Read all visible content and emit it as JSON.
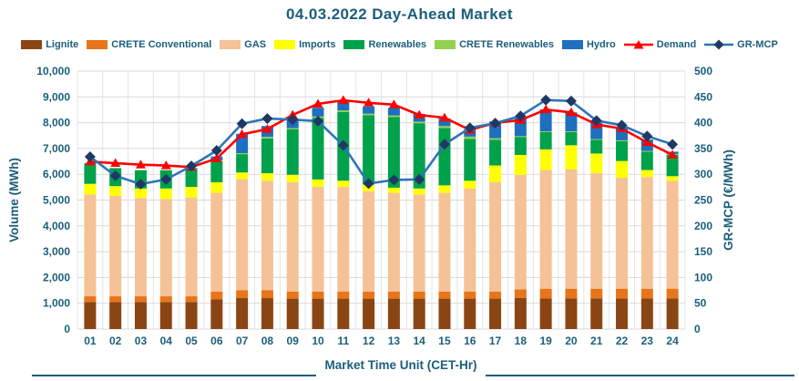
{
  "title": "04.03.2022  Day-Ahead Market",
  "chart_data": {
    "type": "bar",
    "subtype": "stacked-bar-with-lines",
    "title": "04.03.2022  Day-Ahead Market",
    "xlabel": "Market Time Unit (CET-Hr)",
    "ylabel": "Volume (MWh)",
    "y2label": "GR-MCP (€/MWh)",
    "ylim": [
      0,
      10000
    ],
    "ytick_step": 1000,
    "y2lim": [
      0,
      500
    ],
    "y2tick_step": 50,
    "grid": true,
    "legend_position": "top",
    "categories": [
      "01",
      "02",
      "03",
      "04",
      "05",
      "06",
      "07",
      "08",
      "09",
      "10",
      "11",
      "12",
      "13",
      "14",
      "15",
      "16",
      "17",
      "18",
      "19",
      "20",
      "21",
      "22",
      "23",
      "24"
    ],
    "bar_series": [
      {
        "name": "Lignite",
        "color": "#8B4513",
        "values": [
          1050,
          1050,
          1050,
          1050,
          1050,
          1150,
          1200,
          1200,
          1180,
          1180,
          1180,
          1180,
          1180,
          1180,
          1180,
          1180,
          1180,
          1210,
          1190,
          1190,
          1190,
          1190,
          1190,
          1190
        ]
      },
      {
        "name": "CRETE Conventional",
        "color": "#E8751A",
        "values": [
          220,
          220,
          220,
          220,
          220,
          300,
          310,
          310,
          270,
          270,
          270,
          270,
          270,
          270,
          270,
          270,
          270,
          330,
          375,
          375,
          375,
          375,
          375,
          375
        ]
      },
      {
        "name": "GAS",
        "color": "#F4C296",
        "values": [
          3950,
          3890,
          3810,
          3770,
          3830,
          3830,
          4300,
          4240,
          4240,
          4060,
          4060,
          3890,
          3830,
          3770,
          3830,
          4000,
          4240,
          4440,
          4600,
          4620,
          4480,
          4300,
          4330,
          4180
        ]
      },
      {
        "name": "Imports",
        "color": "#FFFF00",
        "values": [
          410,
          380,
          370,
          410,
          410,
          410,
          260,
          290,
          290,
          290,
          240,
          260,
          200,
          230,
          290,
          300,
          650,
          770,
          800,
          940,
          760,
          650,
          270,
          180
        ]
      },
      {
        "name": "Renewables",
        "color": "#00A14B",
        "values": [
          800,
          700,
          710,
          710,
          730,
          810,
          710,
          1350,
          1770,
          2380,
          2670,
          2690,
          2740,
          2530,
          2220,
          1620,
          1000,
          700,
          670,
          510,
          530,
          770,
          710,
          830
        ]
      },
      {
        "name": "CRETE Renewables",
        "color": "#92D050",
        "values": [
          0,
          0,
          0,
          0,
          0,
          40,
          40,
          60,
          40,
          60,
          60,
          60,
          60,
          60,
          80,
          90,
          60,
          30,
          30,
          30,
          30,
          30,
          30,
          30
        ]
      },
      {
        "name": "Hydro",
        "color": "#1E6FC0",
        "values": [
          0,
          0,
          0,
          0,
          0,
          150,
          750,
          420,
          370,
          340,
          330,
          280,
          290,
          300,
          290,
          290,
          650,
          740,
          850,
          735,
          630,
          500,
          440,
          90
        ]
      }
    ],
    "line_series": [
      {
        "name": "Demand",
        "axis": "left",
        "color": "#FE0000",
        "marker": "triangle",
        "marker_color": "#FE0000",
        "values": [
          6490,
          6430,
          6370,
          6340,
          6280,
          6610,
          7550,
          7750,
          8300,
          8730,
          8870,
          8770,
          8700,
          8300,
          8190,
          7720,
          7990,
          8100,
          8510,
          8400,
          7930,
          7770,
          7240,
          6750
        ]
      },
      {
        "name": "GR-MCP",
        "axis": "right",
        "color": "#2E75B6",
        "marker": "diamond",
        "marker_color": "#1F3864",
        "values": [
          334,
          297,
          281,
          290,
          316,
          346,
          398,
          408,
          406,
          403,
          356,
          282,
          289,
          290,
          358,
          390,
          399,
          413,
          444,
          442,
          404,
          395,
          374,
          358
        ]
      }
    ],
    "colors": {
      "axis_text": "#1B5E7B",
      "gridline": "#D9D9D9",
      "vertical_gridline": "#E4E4E4",
      "bottom_rule": "#1B5E7B"
    }
  }
}
